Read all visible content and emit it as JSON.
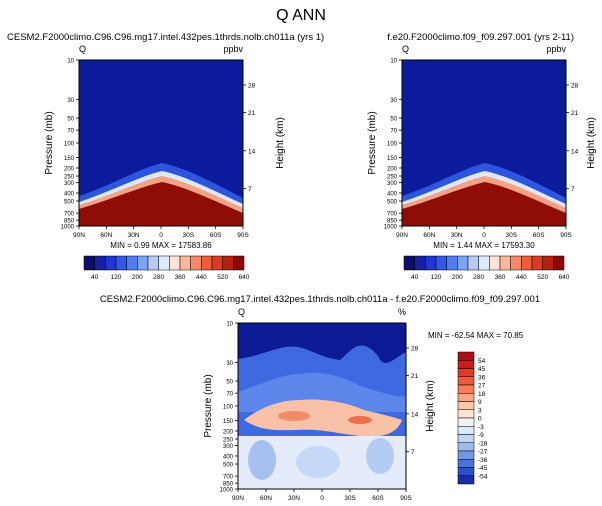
{
  "figure": {
    "title": "Q ANN"
  },
  "chart_data": [
    {
      "type": "heatmap",
      "panel": "model",
      "title": "CESM2.F2000climo.C96.C96.mg17.intel.432pes.1thrds.nolb.ch011a (yrs 1)",
      "variable_label": "Q",
      "units_label": "ppbv",
      "xlabel": "",
      "ylabel": "Pressure (mb)",
      "ylabel_right": "Height (km)",
      "x_ticks": [
        "90N",
        "60N",
        "30N",
        "0",
        "30S",
        "60S",
        "90S"
      ],
      "y_ticks": [
        "10",
        "30",
        "50",
        "70",
        "100",
        "150",
        "200",
        "250",
        "300",
        "400",
        "500",
        "700",
        "850",
        "1000"
      ],
      "y_ticks_right": [
        "28",
        "21",
        "14",
        "7"
      ],
      "y_scale": "log",
      "ylim": [
        1000,
        10
      ],
      "stats": "MIN =  0.99   MAX = 17583.86",
      "colorbar_labels": [
        "40",
        "120",
        "200",
        "280",
        "360",
        "440",
        "520",
        "640"
      ],
      "colorbar_colors": [
        "#0a0f6b",
        "#1620a2",
        "#2136cc",
        "#3357e6",
        "#4f7df0",
        "#7ea3f6",
        "#b6ccfa",
        "#e2ebfd",
        "#fde4d8",
        "#f9b69a",
        "#f48968",
        "#ec5e3f",
        "#d83a22",
        "#b51f10",
        "#8b0a06"
      ]
    },
    {
      "type": "heatmap",
      "panel": "reference",
      "title": "f.e20.F2000climo.f09_f09.297.001 (yrs 2-11)",
      "variable_label": "Q",
      "units_label": "ppbv",
      "xlabel": "",
      "ylabel": "Pressure (mb)",
      "ylabel_right": "Height (km)",
      "x_ticks": [
        "90N",
        "60N",
        "30N",
        "0",
        "30S",
        "60S",
        "90S"
      ],
      "y_ticks": [
        "10",
        "30",
        "50",
        "70",
        "100",
        "150",
        "200",
        "250",
        "300",
        "400",
        "500",
        "700",
        "850",
        "1000"
      ],
      "y_ticks_right": [
        "28",
        "21",
        "14",
        "7"
      ],
      "y_scale": "log",
      "ylim": [
        1000,
        10
      ],
      "stats": "MIN =  1.44   MAX = 17593.30",
      "colorbar_labels": [
        "40",
        "120",
        "200",
        "280",
        "360",
        "440",
        "520",
        "640"
      ],
      "colorbar_colors": [
        "#0a0f6b",
        "#1620a2",
        "#2136cc",
        "#3357e6",
        "#4f7df0",
        "#7ea3f6",
        "#b6ccfa",
        "#e2ebfd",
        "#fde4d8",
        "#f9b69a",
        "#f48968",
        "#ec5e3f",
        "#d83a22",
        "#b51f10",
        "#8b0a06"
      ]
    },
    {
      "type": "heatmap",
      "panel": "difference",
      "title": "CESM2.F2000climo.C96.C96.mg17.intel.432pes.1thrds.nolb.ch011a - f.e20.F2000climo.f09_f09.297.001",
      "variable_label": "Q",
      "units_label": "%",
      "xlabel": "",
      "ylabel": "Pressure (mb)",
      "ylabel_right": "Height (km)",
      "x_ticks": [
        "90N",
        "60N",
        "30N",
        "0",
        "30S",
        "60S",
        "90S"
      ],
      "y_ticks": [
        "10",
        "30",
        "50",
        "70",
        "100",
        "150",
        "200",
        "250",
        "300",
        "400",
        "500",
        "700",
        "850",
        "1000"
      ],
      "y_ticks_right": [
        "28",
        "21",
        "14",
        "7"
      ],
      "y_scale": "log",
      "ylim": [
        1000,
        10
      ],
      "stats": "MIN = -62.54   MAX =  70.85",
      "colorbar_labels": [
        "54",
        "45",
        "36",
        "27",
        "18",
        "9",
        "3",
        "0",
        "-3",
        "-9",
        "-18",
        "-27",
        "-36",
        "-45",
        "-54"
      ],
      "colorbar_colors": [
        "#a50f15",
        "#c81d1d",
        "#e03a2a",
        "#ee5b3c",
        "#f57f57",
        "#f9a57f",
        "#fcc7ab",
        "#fde3d3",
        "#f2f2f2",
        "#dde9f9",
        "#c2d6f4",
        "#9cbcee",
        "#7299e4",
        "#4c73d8",
        "#2b4fc6",
        "#1a2d9e"
      ]
    }
  ]
}
